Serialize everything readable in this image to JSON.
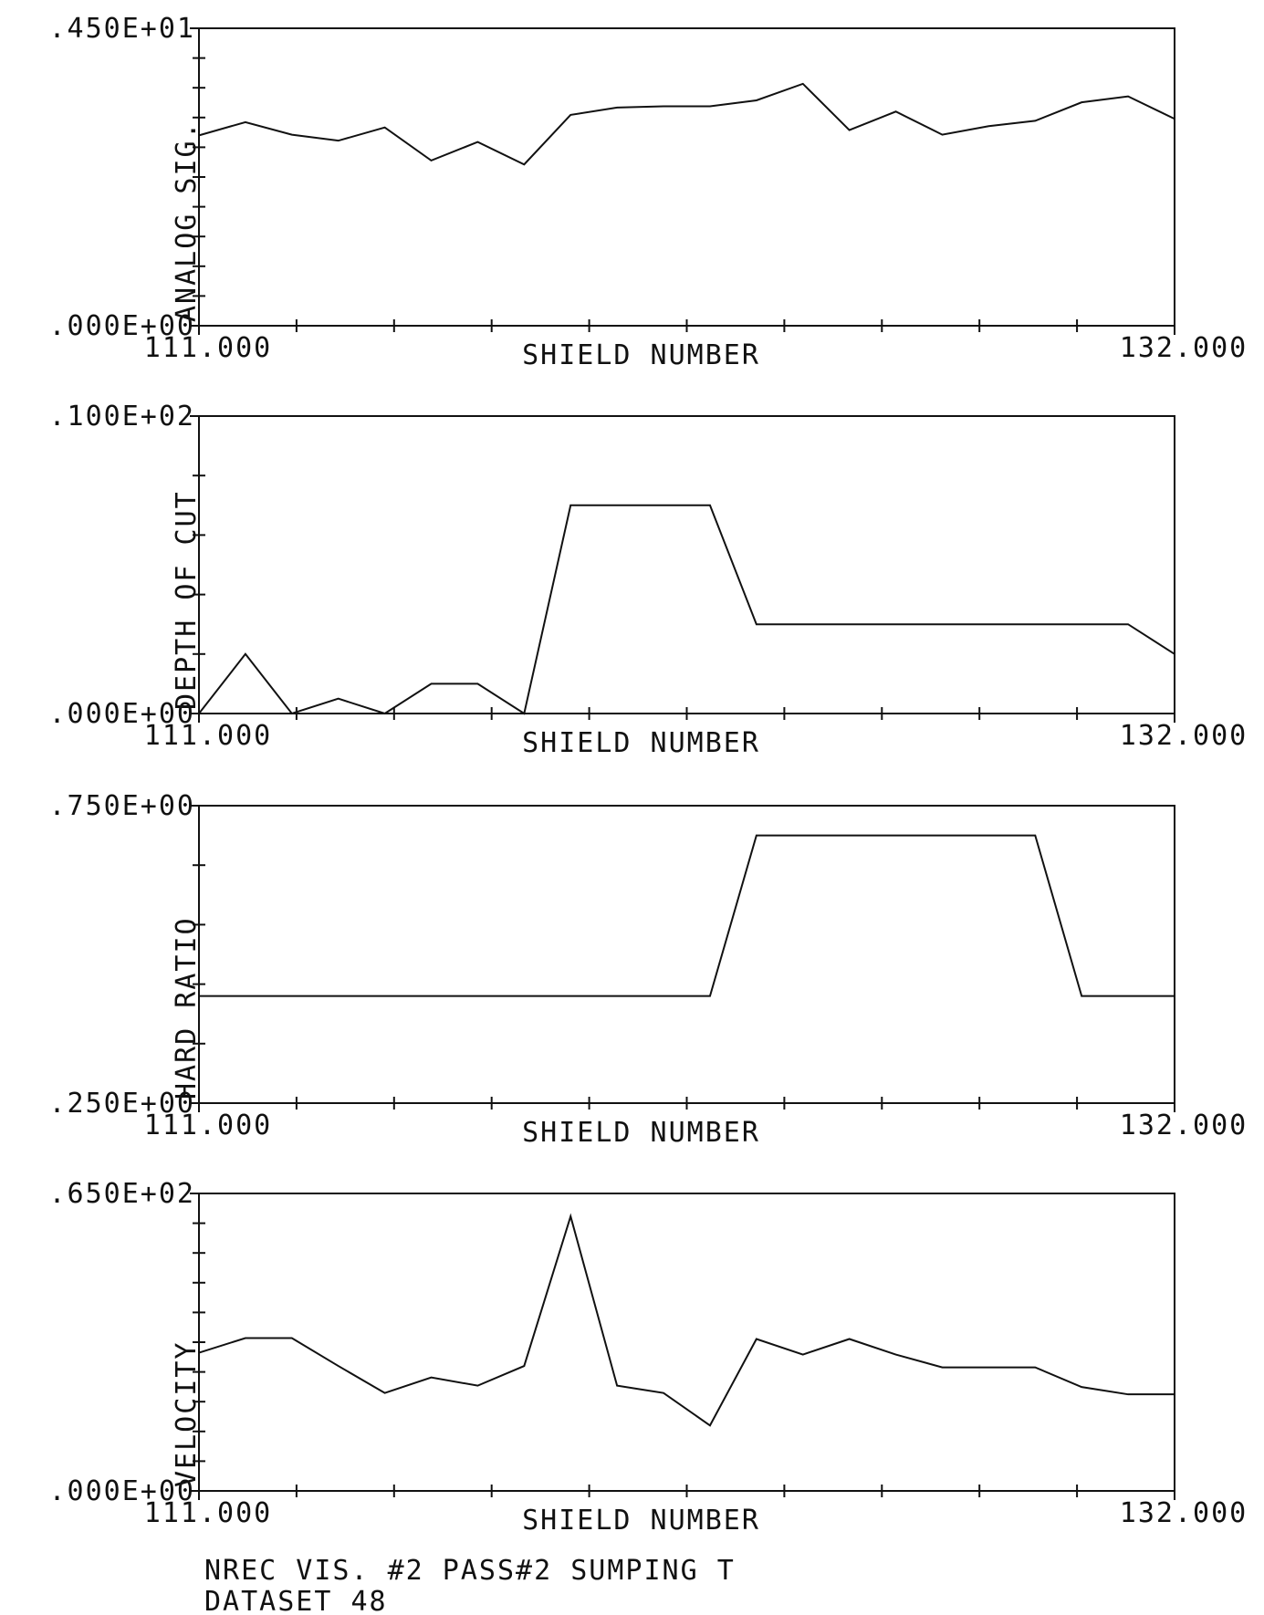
{
  "chart_data": [
    {
      "type": "line",
      "ylabel": "ANALOG SIG.",
      "xlabel": "SHIELD NUMBER",
      "x": [
        111,
        112,
        113,
        114,
        115,
        116,
        117,
        118,
        119,
        120,
        121,
        122,
        123,
        124,
        125,
        126,
        127,
        128,
        129,
        130,
        131,
        132
      ],
      "values": [
        2.88,
        3.08,
        2.89,
        2.8,
        3.0,
        2.5,
        2.78,
        2.44,
        3.19,
        3.3,
        3.32,
        3.32,
        3.41,
        3.66,
        2.96,
        3.24,
        2.89,
        3.02,
        3.1,
        3.38,
        3.47,
        3.13
      ],
      "color": "#111111",
      "xlim": [
        111,
        132
      ],
      "xticks": [
        {
          "value": 111,
          "label": "111.000"
        },
        {
          "value": 132,
          "label": "132.000"
        }
      ],
      "ylim": [
        0,
        4.5
      ],
      "yticks": [
        {
          "value": 0,
          "label": ".000E+00"
        },
        {
          "value": 4.5,
          "label": ".450E+01"
        }
      ],
      "x_minor_divisions": 10,
      "y_minor_divisions": 10
    },
    {
      "type": "line",
      "ylabel": "DEPTH OF CUT",
      "xlabel": "SHIELD NUMBER",
      "x": [
        111,
        112,
        113,
        114,
        115,
        116,
        117,
        118,
        119,
        120,
        121,
        122,
        123,
        124,
        125,
        126,
        127,
        128,
        129,
        130,
        131,
        132
      ],
      "values": [
        0,
        2.0,
        0,
        0.5,
        0,
        1.0,
        1.0,
        0,
        7.0,
        7.0,
        7.0,
        7.0,
        3.0,
        3.0,
        3.0,
        3.0,
        3.0,
        3.0,
        3.0,
        3.0,
        3.0,
        2.0
      ],
      "color": "#111111",
      "xlim": [
        111,
        132
      ],
      "xticks": [
        {
          "value": 111,
          "label": "111.000"
        },
        {
          "value": 132,
          "label": "132.000"
        }
      ],
      "ylim": [
        0,
        10
      ],
      "yticks": [
        {
          "value": 0,
          "label": ".000E+00"
        },
        {
          "value": 10,
          "label": ".100E+02"
        }
      ],
      "x_minor_divisions": 10,
      "y_minor_divisions": 5
    },
    {
      "type": "line",
      "ylabel": "HARD RATIO",
      "xlabel": "SHIELD NUMBER",
      "x": [
        111,
        112,
        113,
        114,
        115,
        116,
        117,
        118,
        119,
        120,
        121,
        122,
        123,
        124,
        125,
        126,
        127,
        128,
        129,
        130,
        131,
        132
      ],
      "values": [
        0.43,
        0.43,
        0.43,
        0.43,
        0.43,
        0.43,
        0.43,
        0.43,
        0.43,
        0.43,
        0.43,
        0.43,
        0.7,
        0.7,
        0.7,
        0.7,
        0.7,
        0.7,
        0.7,
        0.43,
        0.43,
        0.43
      ],
      "color": "#111111",
      "xlim": [
        111,
        132
      ],
      "xticks": [
        {
          "value": 111,
          "label": "111.000"
        },
        {
          "value": 132,
          "label": "132.000"
        }
      ],
      "ylim": [
        0.25,
        0.75
      ],
      "yticks": [
        {
          "value": 0.25,
          "label": ".250E+00"
        },
        {
          "value": 0.75,
          "label": ".750E+00"
        }
      ],
      "x_minor_divisions": 10,
      "y_minor_divisions": 5
    },
    {
      "type": "line",
      "ylabel": "VELOCITY",
      "xlabel": "SHIELD NUMBER",
      "x": [
        111,
        112,
        113,
        114,
        115,
        116,
        117,
        118,
        119,
        120,
        121,
        122,
        123,
        124,
        125,
        126,
        127,
        128,
        129,
        130,
        131,
        132
      ],
      "values": [
        30.2,
        33.4,
        33.4,
        27.3,
        21.4,
        24.8,
        23.0,
        27.3,
        60.0,
        23.0,
        21.4,
        14.3,
        33.2,
        29.8,
        33.2,
        29.8,
        27.0,
        27.0,
        27.0,
        22.7,
        21.1,
        21.1
      ],
      "color": "#111111",
      "xlim": [
        111,
        132
      ],
      "xticks": [
        {
          "value": 111,
          "label": "111.000"
        },
        {
          "value": 132,
          "label": "132.000"
        }
      ],
      "ylim": [
        0,
        65
      ],
      "yticks": [
        {
          "value": 0,
          "label": ".000E+00"
        },
        {
          "value": 65,
          "label": ".650E+02"
        }
      ],
      "x_minor_divisions": 10,
      "y_minor_divisions": 10
    }
  ],
  "footer": {
    "lines": [
      "NREC VIS. #2 PASS#2 SUMPING T",
      "DATASET 48"
    ]
  }
}
